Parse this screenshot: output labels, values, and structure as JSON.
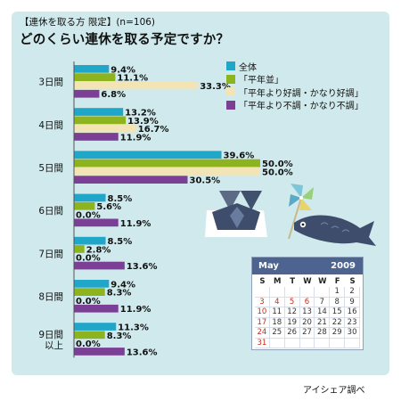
{
  "header": {
    "subtitle": "【連休を取る方 限定】(n=106)",
    "title": "どのくらい連休を取る予定ですか？"
  },
  "footer": {
    "credit": "アイシェア調べ"
  },
  "chart_data": {
    "type": "bar",
    "orientation": "horizontal",
    "title": "どのくらい連休を取る予定ですか？",
    "subtitle": "【連休を取る方 限定】(n=106)",
    "categories": [
      "3日間",
      "4日間",
      "5日間",
      "6日間",
      "7日間",
      "8日間",
      "9日間以上"
    ],
    "category_labels": [
      [
        "3日間"
      ],
      [
        "4日間"
      ],
      [
        "5日間"
      ],
      [
        "6日間"
      ],
      [
        "7日間"
      ],
      [
        "8日間"
      ],
      [
        "9日間",
        "以上"
      ]
    ],
    "unit": "%",
    "xlim": [
      0,
      50
    ],
    "grid": false,
    "legend_position": "top-right",
    "series": [
      {
        "name": "全体",
        "color": "#1fa6c8",
        "values": [
          9.4,
          13.2,
          39.6,
          8.5,
          8.5,
          9.4,
          11.3
        ],
        "labels": [
          "9.4%",
          "13.2%",
          "39.6%",
          "8.5%",
          "8.5%",
          "9.4%",
          "11.3%"
        ]
      },
      {
        "name": "「平年並」",
        "color": "#8db31e",
        "values": [
          11.1,
          13.9,
          50.0,
          5.6,
          2.8,
          8.3,
          8.3
        ],
        "labels": [
          "11.1%",
          "13.9%",
          "50.0%",
          "5.6%",
          "2.8%",
          "8.3%",
          "8.3%"
        ]
      },
      {
        "name": "「平年より好調・かなり好調」",
        "color": "#f3e4b6",
        "values": [
          33.3,
          16.7,
          50.0,
          0.0,
          0.0,
          0.0,
          0.0
        ],
        "labels": [
          "33.3%",
          "16.7%",
          "50.0%",
          "0.0%",
          "0.0%",
          "0.0%",
          "0.0%"
        ]
      },
      {
        "name": "「平年より不調・かなり不調」",
        "color": "#7b3f96",
        "values": [
          6.8,
          11.9,
          30.5,
          11.9,
          13.6,
          11.9,
          13.6
        ],
        "labels": [
          "6.8%",
          "11.9%",
          "30.5%",
          "11.9%",
          "13.6%",
          "11.9%",
          "13.6%"
        ]
      }
    ]
  },
  "calendar": {
    "month": "May",
    "year": "2009",
    "weekdays": [
      "S",
      "M",
      "T",
      "W",
      "W",
      "F",
      "S"
    ],
    "weeks": [
      [
        "",
        "",
        "",
        "",
        "",
        "1",
        "2"
      ],
      [
        "3",
        "4",
        "5",
        "6",
        "7",
        "8",
        "9"
      ],
      [
        "10",
        "11",
        "12",
        "13",
        "14",
        "15",
        "16"
      ],
      [
        "17",
        "18",
        "19",
        "20",
        "21",
        "22",
        "23"
      ],
      [
        "24",
        "25",
        "26",
        "27",
        "28",
        "29",
        "30"
      ],
      [
        "31",
        "",
        "",
        "",
        "",
        "",
        ""
      ]
    ],
    "red_days": [
      "3",
      "4",
      "5",
      "6",
      "10",
      "17",
      "24",
      "31"
    ]
  },
  "decorations": {
    "icons": [
      "kabuto-helmet-icon",
      "pinwheel-icon",
      "koinobori-carp-icon"
    ]
  }
}
